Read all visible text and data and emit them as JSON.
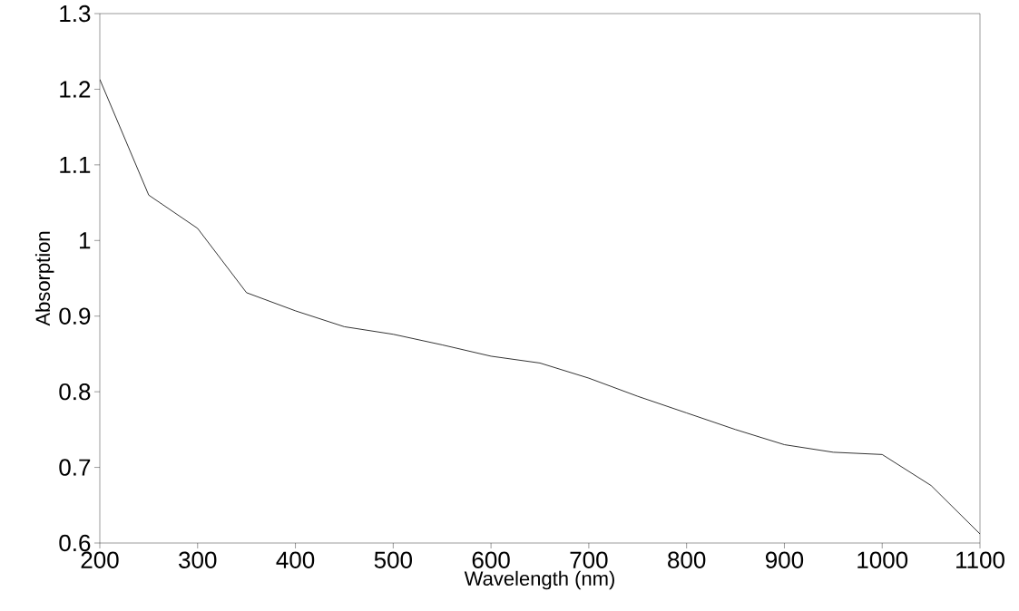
{
  "chart_data": {
    "type": "line",
    "xlabel": "Wavelength (nm)",
    "ylabel": "Absorption",
    "x": [
      200,
      250,
      300,
      350,
      400,
      450,
      500,
      550,
      600,
      650,
      700,
      750,
      800,
      850,
      900,
      950,
      1000,
      1050,
      1100
    ],
    "series": [
      {
        "color": "#000000",
        "values": [
          1.213,
          1.06,
          1.016,
          0.931,
          0.907,
          0.886,
          0.876,
          0.862,
          0.847,
          0.838,
          0.818,
          0.794,
          0.772,
          0.75,
          0.73,
          0.72,
          0.717,
          0.676,
          0.612
        ]
      }
    ],
    "xlim": [
      200,
      1100
    ],
    "ylim": [
      0.6,
      1.3
    ],
    "xticks": [
      200,
      300,
      400,
      500,
      600,
      700,
      800,
      900,
      1000,
      1100
    ],
    "yticks": [
      0.6,
      0.7,
      0.8,
      0.9,
      {
        "value": 1,
        "label": "1"
      },
      1.1,
      1.2,
      1.3
    ],
    "grid": false,
    "legend": false,
    "marker": "none",
    "line_style": "solid"
  }
}
